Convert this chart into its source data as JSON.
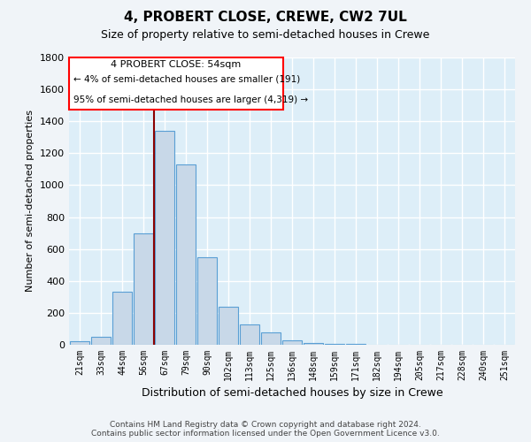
{
  "title": "4, PROBERT CLOSE, CREWE, CW2 7UL",
  "subtitle": "Size of property relative to semi-detached houses in Crewe",
  "xlabel": "Distribution of semi-detached houses by size in Crewe",
  "ylabel": "Number of semi-detached properties",
  "footer_line1": "Contains HM Land Registry data © Crown copyright and database right 2024.",
  "footer_line2": "Contains public sector information licensed under the Open Government Licence v3.0.",
  "annotation_line1": "4 PROBERT CLOSE: 54sqm",
  "annotation_line2": "← 4% of semi-detached houses are smaller (191)",
  "annotation_line3": "95% of semi-detached houses are larger (4,319) →",
  "bar_labels": [
    "21sqm",
    "33sqm",
    "44sqm",
    "56sqm",
    "67sqm",
    "79sqm",
    "90sqm",
    "102sqm",
    "113sqm",
    "125sqm",
    "136sqm",
    "148sqm",
    "159sqm",
    "171sqm",
    "182sqm",
    "194sqm",
    "205sqm",
    "217sqm",
    "228sqm",
    "240sqm",
    "251sqm"
  ],
  "bar_values": [
    20,
    50,
    330,
    700,
    1340,
    1130,
    550,
    240,
    130,
    80,
    30,
    10,
    5,
    3,
    2,
    1,
    1,
    0,
    0,
    0,
    0
  ],
  "bar_color": "#c8d8e8",
  "bar_edge_color": "#5a9fd4",
  "background_color": "#ddeef8",
  "fig_background_color": "#f0f4f8",
  "grid_color": "#ffffff",
  "vline_x": 3.5,
  "vline_color": "#8b0000",
  "ylim": [
    0,
    1800
  ],
  "yticks": [
    0,
    200,
    400,
    600,
    800,
    1000,
    1200,
    1400,
    1600,
    1800
  ]
}
